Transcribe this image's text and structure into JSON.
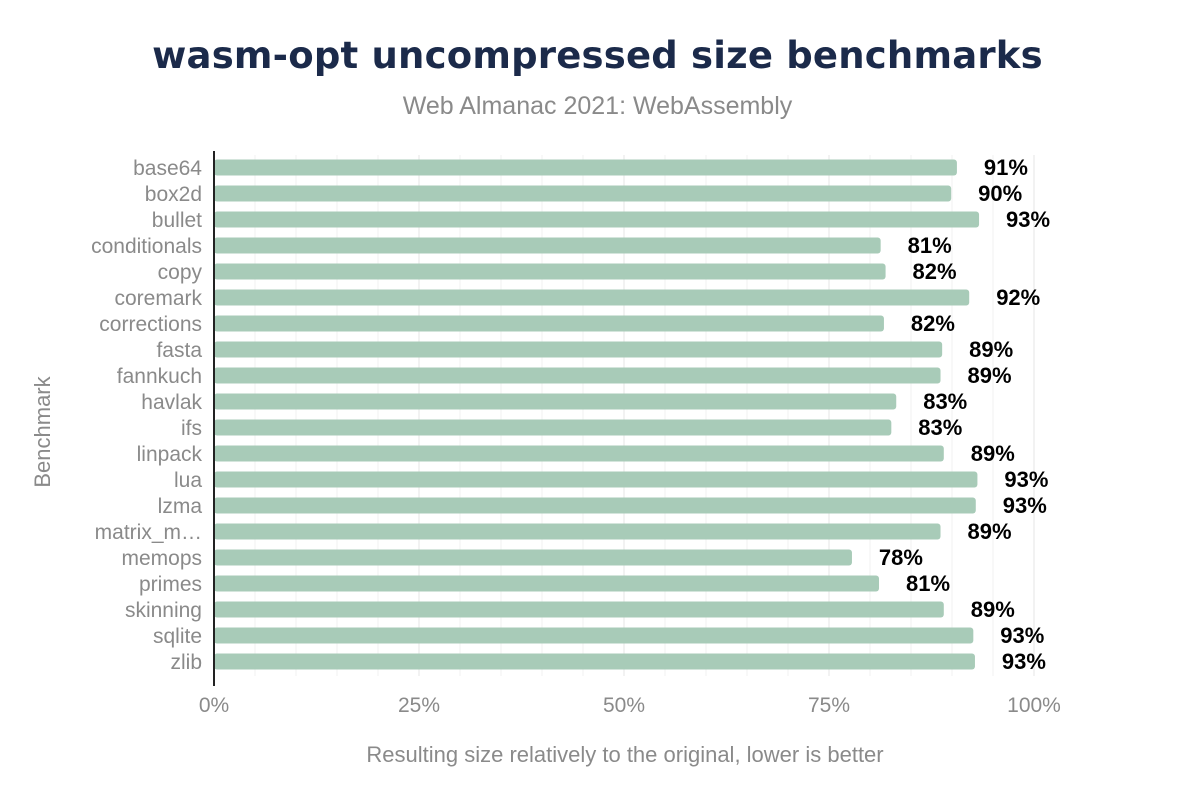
{
  "chart_data": {
    "type": "bar",
    "orientation": "horizontal",
    "title": "wasm-opt uncompressed size benchmarks",
    "subtitle": "Web Almanac 2021: WebAssembly",
    "xlabel": "Resulting size relatively to the original, lower is better",
    "ylabel": "Benchmark",
    "xlim": [
      0,
      100
    ],
    "x_ticks": [
      "0%",
      "25%",
      "50%",
      "75%",
      "100%"
    ],
    "x_tick_values": [
      0,
      25,
      50,
      75,
      100
    ],
    "grid": true,
    "bar_color": "#a8cbb8",
    "categories": [
      "base64",
      "box2d",
      "bullet",
      "conditionals",
      "copy",
      "coremark",
      "corrections",
      "fasta",
      "fannkuch",
      "havlak",
      "ifs",
      "linpack",
      "lua",
      "lzma",
      "matrix_m…",
      "memops",
      "primes",
      "skinning",
      "sqlite",
      "zlib"
    ],
    "values": [
      90.6,
      89.9,
      93.3,
      81.3,
      81.9,
      92.1,
      81.7,
      88.8,
      88.6,
      83.2,
      82.6,
      89.0,
      93.1,
      92.9,
      88.6,
      77.8,
      81.1,
      89.0,
      92.6,
      92.8
    ],
    "data_labels": [
      "91%",
      "90%",
      "93%",
      "81%",
      "82%",
      "92%",
      "82%",
      "89%",
      "89%",
      "83%",
      "83%",
      "89%",
      "93%",
      "93%",
      "89%",
      "78%",
      "81%",
      "89%",
      "93%",
      "93%"
    ]
  }
}
